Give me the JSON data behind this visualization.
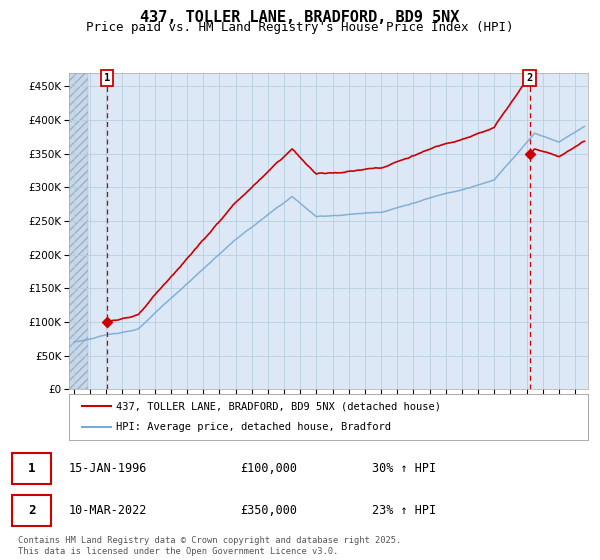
{
  "title": "437, TOLLER LANE, BRADFORD, BD9 5NX",
  "subtitle": "Price paid vs. HM Land Registry's House Price Index (HPI)",
  "ylim": [
    0,
    470000
  ],
  "yticks": [
    0,
    50000,
    100000,
    150000,
    200000,
    250000,
    300000,
    350000,
    400000,
    450000
  ],
  "xlim_start": 1993.7,
  "xlim_end": 2025.8,
  "sale1_date": 1996.04,
  "sale1_price": 100000,
  "sale2_date": 2022.19,
  "sale2_price": 350000,
  "legend_line1": "437, TOLLER LANE, BRADFORD, BD9 5NX (detached house)",
  "legend_line2": "HPI: Average price, detached house, Bradford",
  "footer": "Contains HM Land Registry data © Crown copyright and database right 2025.\nThis data is licensed under the Open Government Licence v3.0.",
  "price_line_color": "#cc0000",
  "hpi_line_color": "#7aaad4",
  "background_plot": "#dce8f5",
  "dashed_line_color": "#cc0000",
  "marker_color": "#cc0000",
  "grid_color": "#b8cfe0",
  "title_fontsize": 11,
  "subtitle_fontsize": 9,
  "tick_fontsize": 7.5
}
